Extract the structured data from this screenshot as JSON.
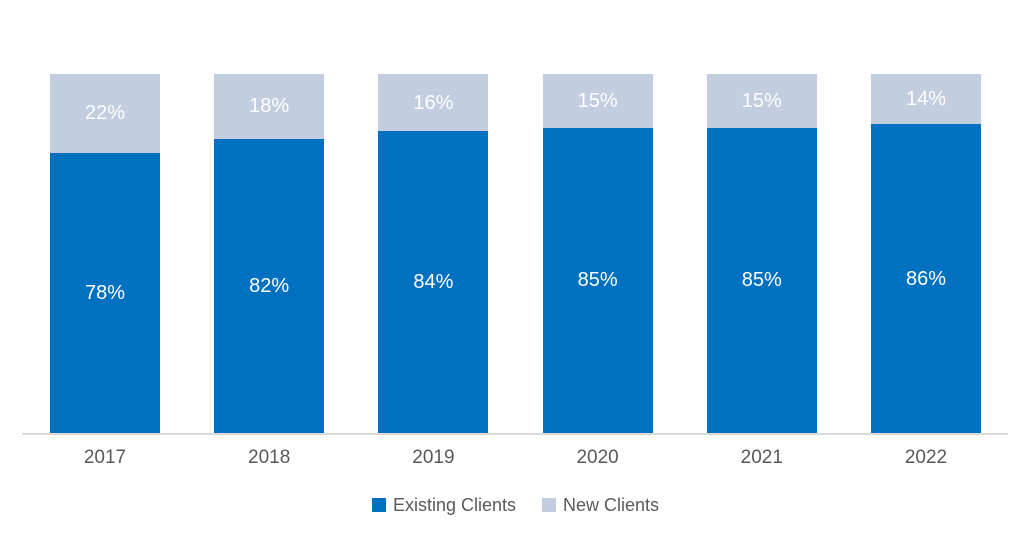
{
  "chart_data": {
    "type": "bar",
    "variant": "stacked-100-percent",
    "title": "",
    "xlabel": "",
    "ylabel": "",
    "categories": [
      "2017",
      "2018",
      "2019",
      "2020",
      "2021",
      "2022"
    ],
    "series": [
      {
        "name": "Existing Clients",
        "color": "#0070C0",
        "values": [
          78,
          82,
          84,
          85,
          85,
          86
        ]
      },
      {
        "name": "New Clients",
        "color": "#C2CEDF",
        "values": [
          22,
          18,
          16,
          15,
          15,
          14
        ]
      }
    ],
    "value_suffix": "%",
    "ylim": [
      0,
      100
    ],
    "grid": false,
    "y_axis_visible": false,
    "legend_position": "bottom",
    "data_labels": true,
    "data_label_color": "#FFFFFF",
    "axis_line_color": "#D9D9D9",
    "category_label_color": "#595959",
    "legend_text_color": "#595959",
    "background": "#FFFFFF"
  }
}
